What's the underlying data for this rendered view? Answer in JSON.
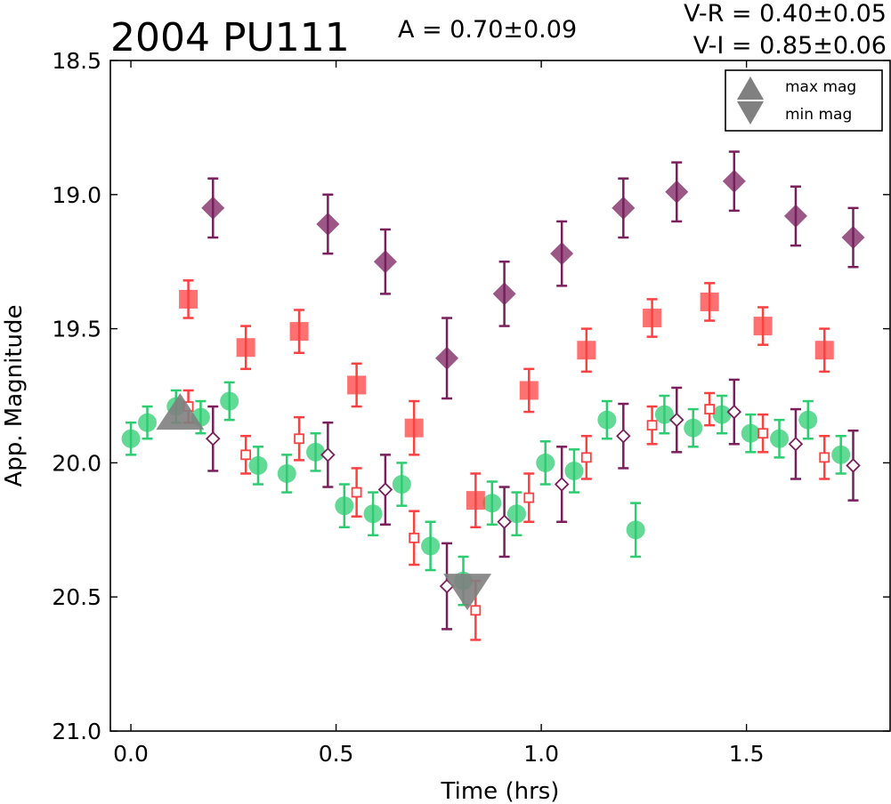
{
  "chart_data": {
    "type": "scatter",
    "title": "2004 PU111",
    "annotations": {
      "amplitude": "A  = 0.70±0.09",
      "v_r": "V-R = 0.40±0.05",
      "v_i": "V-I  = 0.85±0.06"
    },
    "xlabel": "Time (hrs)",
    "ylabel": "App. Magnitude",
    "xlim": [
      -0.05,
      1.85
    ],
    "ylim": [
      21.0,
      18.5
    ],
    "y_inverted": true,
    "grid": false,
    "xticks": [
      0.0,
      0.5,
      1.0,
      1.5
    ],
    "xtick_labels": [
      "0.0",
      "0.5",
      "1.0",
      "1.5"
    ],
    "yticks": [
      18.5,
      19.0,
      19.5,
      20.0,
      20.5,
      21.0
    ],
    "ytick_labels": [
      "18.5",
      "19.0",
      "19.5",
      "20.0",
      "20.5",
      "21.0"
    ],
    "legend": {
      "placement": "top-right",
      "entries": [
        {
          "label": "max mag",
          "marker": "triangle-up",
          "color": "#808080"
        },
        {
          "label": "min mag",
          "marker": "triangle-down",
          "color": "#808080"
        }
      ]
    },
    "extrema": {
      "max_mag": {
        "x": 0.12,
        "y": 19.82
      },
      "min_mag": {
        "x": 0.82,
        "y": 20.47
      }
    },
    "series": [
      {
        "marker": "circle",
        "filled": true,
        "color": "#2ecc71",
        "points": [
          {
            "x": 0.0,
            "y": 19.91,
            "err": 0.06
          },
          {
            "x": 0.04,
            "y": 19.85,
            "err": 0.06
          },
          {
            "x": 0.11,
            "y": 19.79,
            "err": 0.06
          },
          {
            "x": 0.17,
            "y": 19.83,
            "err": 0.06
          },
          {
            "x": 0.24,
            "y": 19.77,
            "err": 0.07
          },
          {
            "x": 0.31,
            "y": 20.01,
            "err": 0.07
          },
          {
            "x": 0.38,
            "y": 20.04,
            "err": 0.07
          },
          {
            "x": 0.45,
            "y": 19.96,
            "err": 0.07
          },
          {
            "x": 0.52,
            "y": 20.16,
            "err": 0.08
          },
          {
            "x": 0.59,
            "y": 20.19,
            "err": 0.08
          },
          {
            "x": 0.66,
            "y": 20.08,
            "err": 0.08
          },
          {
            "x": 0.73,
            "y": 20.31,
            "err": 0.09
          },
          {
            "x": 0.81,
            "y": 20.44,
            "err": 0.09
          },
          {
            "x": 0.88,
            "y": 20.15,
            "err": 0.08
          },
          {
            "x": 0.94,
            "y": 20.19,
            "err": 0.08
          },
          {
            "x": 1.01,
            "y": 20.0,
            "err": 0.08
          },
          {
            "x": 1.08,
            "y": 20.03,
            "err": 0.08
          },
          {
            "x": 1.16,
            "y": 19.84,
            "err": 0.07
          },
          {
            "x": 1.23,
            "y": 20.25,
            "err": 0.1
          },
          {
            "x": 1.3,
            "y": 19.82,
            "err": 0.07
          },
          {
            "x": 1.37,
            "y": 19.87,
            "err": 0.07
          },
          {
            "x": 1.44,
            "y": 19.82,
            "err": 0.07
          },
          {
            "x": 1.51,
            "y": 19.89,
            "err": 0.07
          },
          {
            "x": 1.58,
            "y": 19.91,
            "err": 0.07
          },
          {
            "x": 1.65,
            "y": 19.84,
            "err": 0.07
          },
          {
            "x": 1.73,
            "y": 19.97,
            "err": 0.07
          }
        ]
      },
      {
        "marker": "square",
        "filled": true,
        "color": "#ff4040",
        "points": [
          {
            "x": 0.14,
            "y": 19.39,
            "err": 0.07
          },
          {
            "x": 0.28,
            "y": 19.57,
            "err": 0.08
          },
          {
            "x": 0.41,
            "y": 19.51,
            "err": 0.08
          },
          {
            "x": 0.55,
            "y": 19.71,
            "err": 0.08
          },
          {
            "x": 0.69,
            "y": 19.87,
            "err": 0.1
          },
          {
            "x": 0.84,
            "y": 20.14,
            "err": 0.1
          },
          {
            "x": 0.97,
            "y": 19.73,
            "err": 0.08
          },
          {
            "x": 1.11,
            "y": 19.58,
            "err": 0.08
          },
          {
            "x": 1.27,
            "y": 19.46,
            "err": 0.07
          },
          {
            "x": 1.41,
            "y": 19.4,
            "err": 0.07
          },
          {
            "x": 1.54,
            "y": 19.49,
            "err": 0.07
          },
          {
            "x": 1.69,
            "y": 19.58,
            "err": 0.08
          }
        ]
      },
      {
        "marker": "diamond",
        "filled": true,
        "color": "#7a1f5c",
        "points": [
          {
            "x": 0.2,
            "y": 19.05,
            "err": 0.11
          },
          {
            "x": 0.48,
            "y": 19.11,
            "err": 0.11
          },
          {
            "x": 0.62,
            "y": 19.25,
            "err": 0.12
          },
          {
            "x": 0.77,
            "y": 19.61,
            "err": 0.15
          },
          {
            "x": 0.91,
            "y": 19.37,
            "err": 0.12
          },
          {
            "x": 1.05,
            "y": 19.22,
            "err": 0.12
          },
          {
            "x": 1.2,
            "y": 19.05,
            "err": 0.11
          },
          {
            "x": 1.33,
            "y": 18.99,
            "err": 0.11
          },
          {
            "x": 1.47,
            "y": 18.95,
            "err": 0.11
          },
          {
            "x": 1.62,
            "y": 19.08,
            "err": 0.11
          },
          {
            "x": 1.76,
            "y": 19.16,
            "err": 0.11
          }
        ]
      },
      {
        "marker": "square",
        "filled": false,
        "color": "#ff4040",
        "points": [
          {
            "x": 0.14,
            "y": 19.79,
            "err": 0.06
          },
          {
            "x": 0.28,
            "y": 19.97,
            "err": 0.07
          },
          {
            "x": 0.41,
            "y": 19.91,
            "err": 0.08
          },
          {
            "x": 0.55,
            "y": 20.11,
            "err": 0.09
          },
          {
            "x": 0.69,
            "y": 20.28,
            "err": 0.1
          },
          {
            "x": 0.84,
            "y": 20.55,
            "err": 0.11
          },
          {
            "x": 0.97,
            "y": 20.13,
            "err": 0.09
          },
          {
            "x": 1.11,
            "y": 19.98,
            "err": 0.08
          },
          {
            "x": 1.27,
            "y": 19.86,
            "err": 0.07
          },
          {
            "x": 1.41,
            "y": 19.8,
            "err": 0.06
          },
          {
            "x": 1.54,
            "y": 19.89,
            "err": 0.07
          },
          {
            "x": 1.69,
            "y": 19.98,
            "err": 0.08
          }
        ]
      },
      {
        "marker": "diamond",
        "filled": false,
        "color": "#7a1f5c",
        "points": [
          {
            "x": 0.2,
            "y": 19.91,
            "err": 0.12
          },
          {
            "x": 0.48,
            "y": 19.97,
            "err": 0.12
          },
          {
            "x": 0.62,
            "y": 20.1,
            "err": 0.13
          },
          {
            "x": 0.77,
            "y": 20.46,
            "err": 0.16
          },
          {
            "x": 0.91,
            "y": 20.22,
            "err": 0.13
          },
          {
            "x": 1.05,
            "y": 20.08,
            "err": 0.14
          },
          {
            "x": 1.2,
            "y": 19.9,
            "err": 0.12
          },
          {
            "x": 1.33,
            "y": 19.84,
            "err": 0.12
          },
          {
            "x": 1.47,
            "y": 19.81,
            "err": 0.12
          },
          {
            "x": 1.62,
            "y": 19.93,
            "err": 0.13
          },
          {
            "x": 1.76,
            "y": 20.01,
            "err": 0.13
          }
        ]
      }
    ]
  }
}
